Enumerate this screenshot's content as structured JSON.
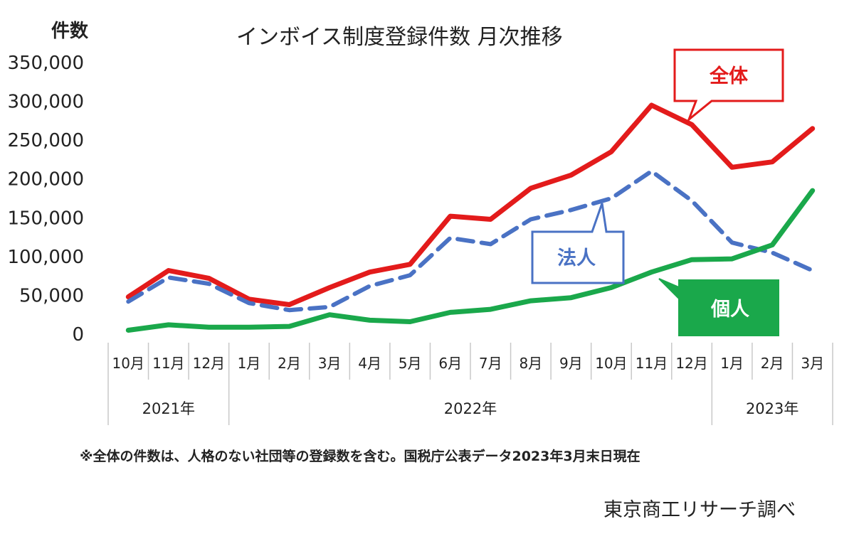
{
  "chart_data": {
    "type": "line",
    "title": "インボイス制度登録件数 月次推移",
    "ylabel": "件数",
    "ylim": [
      0,
      350000
    ],
    "yticks": [
      "350,000",
      "300,000",
      "250,000",
      "200,000",
      "150,000",
      "100,000",
      "50,000",
      "0"
    ],
    "categories": [
      "10月",
      "11月",
      "12月",
      "1月",
      "2月",
      "3月",
      "4月",
      "5月",
      "6月",
      "7月",
      "8月",
      "9月",
      "10月",
      "11月",
      "12月",
      "1月",
      "2月",
      "3月"
    ],
    "year_groups": [
      {
        "label": "2021年",
        "count": 3
      },
      {
        "label": "2022年",
        "count": 12
      },
      {
        "label": "2023年",
        "count": 3
      }
    ],
    "series": [
      {
        "name": "全体",
        "color": "#e31b1b",
        "style": "solid",
        "values": [
          48000,
          82000,
          72000,
          45000,
          38000,
          60000,
          80000,
          90000,
          152000,
          148000,
          188000,
          205000,
          235000,
          295000,
          270000,
          215000,
          222000,
          265000
        ]
      },
      {
        "name": "法人",
        "color": "#4a72c4",
        "style": "dashed",
        "values": [
          42000,
          73000,
          65000,
          40000,
          31000,
          35000,
          62000,
          76000,
          124000,
          116000,
          148000,
          160000,
          175000,
          210000,
          172000,
          118000,
          105000,
          82000
        ]
      },
      {
        "name": "個人",
        "color": "#1aa84b",
        "style": "solid",
        "values": [
          5000,
          12000,
          9000,
          9000,
          10000,
          25000,
          18000,
          16000,
          28000,
          32000,
          43000,
          47000,
          60000,
          80000,
          96000,
          97000,
          115000,
          185000
        ]
      }
    ],
    "grid": false,
    "legend": "callouts"
  },
  "note": "※全体の件数は、人格のない社団等の登録数を含む。国税庁公表データ2023年3月末日現在",
  "source": "東京商工リサーチ調べ"
}
